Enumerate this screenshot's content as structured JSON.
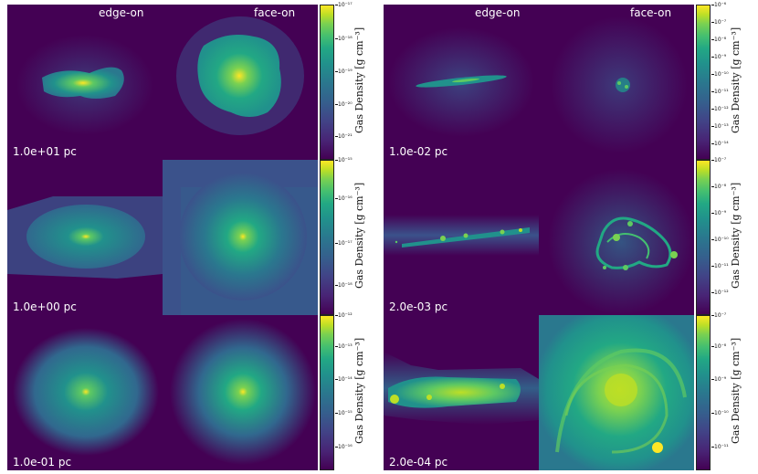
{
  "column_titles": [
    "edge-on",
    "face-on",
    "edge-on",
    "face-on"
  ],
  "colorbar_label": "Gas Density [g cm⁻³]",
  "left_rows": [
    {
      "scale": "1.0e+01 pc",
      "ticks": [
        "10⁻¹⁷",
        "10⁻¹⁸",
        "10⁻¹⁹",
        "10⁻²⁰",
        "10⁻²¹"
      ]
    },
    {
      "scale": "1.0e+00 pc",
      "ticks": [
        "10⁻¹⁵",
        "10⁻¹⁶",
        "10⁻¹⁷",
        "10⁻¹⁸"
      ]
    },
    {
      "scale": "1.0e-01 pc",
      "ticks": [
        "10⁻¹²",
        "10⁻¹³",
        "10⁻¹⁴",
        "10⁻¹⁵",
        "10⁻¹⁶"
      ]
    }
  ],
  "right_rows": [
    {
      "scale": "1.0e-02 pc",
      "ticks": [
        "10⁻⁶",
        "10⁻⁷",
        "10⁻⁸",
        "10⁻⁹",
        "10⁻¹⁰",
        "10⁻¹¹",
        "10⁻¹²",
        "10⁻¹³",
        "10⁻¹⁴"
      ]
    },
    {
      "scale": "2.0e-03 pc",
      "ticks": [
        "10⁻⁷",
        "10⁻⁸",
        "10⁻⁹",
        "10⁻¹⁰",
        "10⁻¹¹",
        "10⁻¹²"
      ]
    },
    {
      "scale": "2.0e-04 pc",
      "ticks": [
        "10⁻⁷",
        "10⁻⁸",
        "10⁻⁹",
        "10⁻¹⁰",
        "10⁻¹¹"
      ]
    }
  ],
  "colormap": [
    "#440154",
    "#482475",
    "#414487",
    "#355f8d",
    "#2a788e",
    "#21918c",
    "#22a884",
    "#44bf70",
    "#7ad151",
    "#bddf26",
    "#fde725"
  ]
}
